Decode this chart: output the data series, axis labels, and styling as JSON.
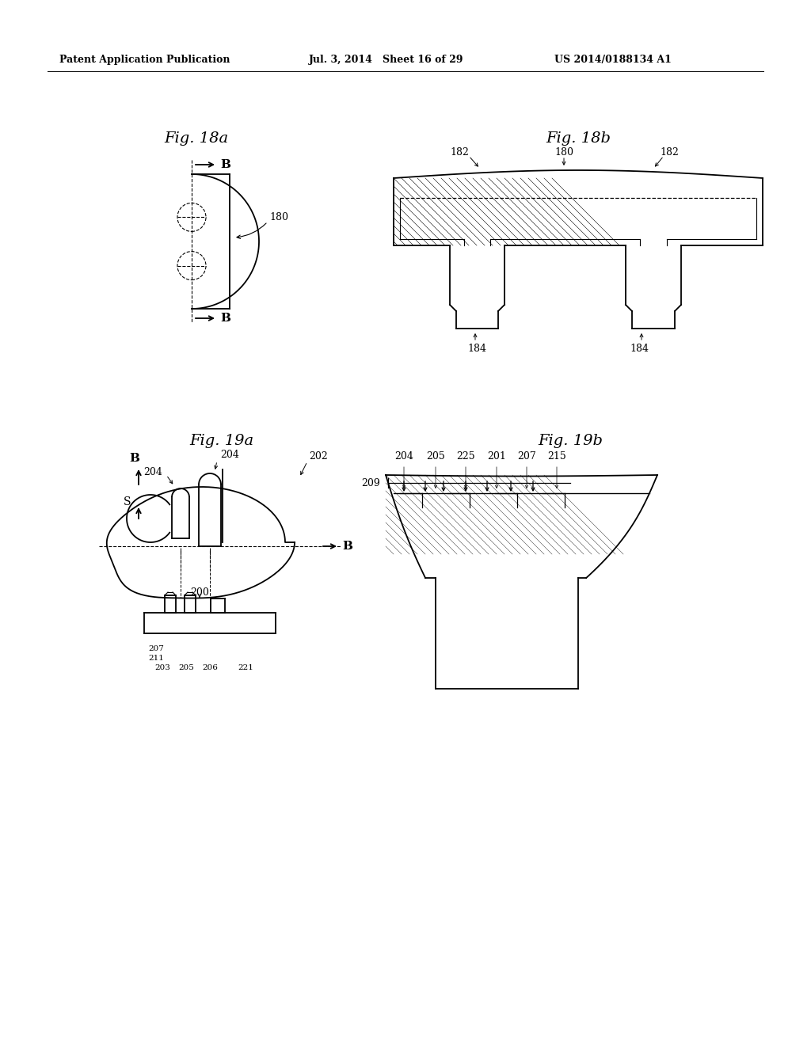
{
  "background_color": "#ffffff",
  "header_left": "Patent Application Publication",
  "header_center": "Jul. 3, 2014   Sheet 16 of 29",
  "header_right": "US 2014/0188134 A1",
  "fig18a_title": "Fig. 18a",
  "fig18b_title": "Fig. 18b",
  "fig19a_title": "Fig. 19a",
  "fig19b_title": "Fig. 19b",
  "line_color": "#000000",
  "text_color": "#000000",
  "header_fontsize": 9,
  "fig_title_fontsize": 14,
  "label_fontsize": 9
}
